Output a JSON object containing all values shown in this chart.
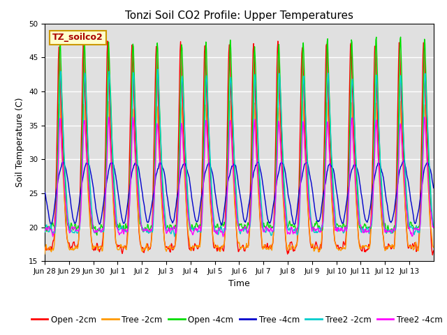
{
  "title": "Tonzi Soil CO2 Profile: Upper Temperatures",
  "xlabel": "Time",
  "ylabel": "Soil Temperature (C)",
  "ylim": [
    15,
    50
  ],
  "series_colors": [
    "#ff0000",
    "#ff9900",
    "#00dd00",
    "#0000cc",
    "#00cccc",
    "#ff00ff"
  ],
  "series_labels": [
    "Open -2cm",
    "Tree -2cm",
    "Open -4cm",
    "Tree -4cm",
    "Tree2 -2cm",
    "Tree2 -4cm"
  ],
  "annotation_text": "TZ_soilco2",
  "annotation_box_color": "#ffffcc",
  "annotation_box_edge": "#cc9900",
  "tick_labels": [
    "Jun 28",
    "Jun 29",
    "Jun 30",
    "Jul 1",
    "Jul 2",
    "Jul 3",
    "Jul 4",
    "Jul 5",
    "Jul 6",
    "Jul 7",
    "Jul 8",
    "Jul 9",
    "Jul 10",
    "Jul 11",
    "Jul 12",
    "Jul 13"
  ],
  "background_color": "#ffffff",
  "plot_bg_color": "#e0e0e0",
  "grid_color": "#ffffff",
  "title_fontsize": 11,
  "axis_label_fontsize": 9,
  "tick_fontsize": 7.5,
  "legend_fontsize": 8.5
}
